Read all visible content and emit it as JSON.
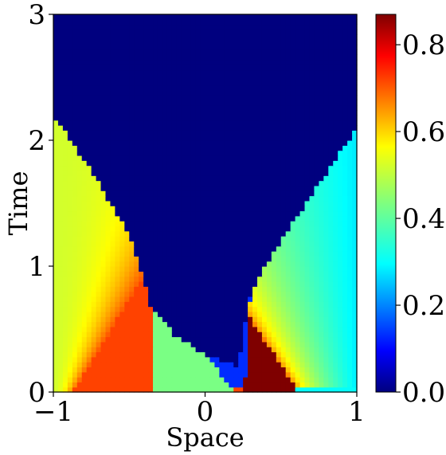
{
  "chart_data": {
    "type": "heatmap",
    "title": "",
    "xlabel": "Space",
    "ylabel": "Time",
    "xlim": [
      -1,
      1
    ],
    "ylim": [
      0,
      3
    ],
    "x_ticks": [
      {
        "value": -1,
        "label": "−1"
      },
      {
        "value": 0,
        "label": "0"
      },
      {
        "value": 1,
        "label": "1"
      }
    ],
    "y_ticks": [
      {
        "value": 0,
        "label": "0"
      },
      {
        "value": 1,
        "label": "1"
      },
      {
        "value": 2,
        "label": "2"
      },
      {
        "value": 3,
        "label": "3"
      }
    ],
    "colormap": "jet",
    "colorbar": {
      "range": [
        0,
        0.87
      ],
      "ticks": [
        {
          "value": 0.0,
          "label": "0.0"
        },
        {
          "value": 0.2,
          "label": "0.2"
        },
        {
          "value": 0.4,
          "label": "0.4"
        },
        {
          "value": 0.6,
          "label": "0.6"
        },
        {
          "value": 0.8,
          "label": "0.8"
        }
      ]
    },
    "background_value": 0.0,
    "regions": [
      {
        "name": "left-rarefaction-fan",
        "x_base": [
          -1,
          -0.5
        ],
        "value_range": [
          0.55,
          0.7
        ]
      },
      {
        "name": "left-plateau",
        "x_base": [
          -0.87,
          -0.36
        ],
        "t_top": 0.55,
        "value": 0.72
      },
      {
        "name": "central-plateau",
        "x_base": [
          -0.36,
          0.19
        ],
        "t_top": 0.6,
        "value": 0.43
      },
      {
        "name": "central-dip",
        "x_base": [
          -0.15,
          0.3
        ],
        "t_top": 0.95,
        "value": 0.13
      },
      {
        "name": "right-peak",
        "x_base": [
          0.26,
          0.62
        ],
        "t_top": 0.55,
        "value": 0.87
      },
      {
        "name": "right-rarefaction-fan",
        "x_base": [
          0.62,
          1
        ],
        "value_range": [
          0.28,
          0.55
        ]
      },
      {
        "name": "right-plateau",
        "x_base": [
          0.62,
          1
        ],
        "t_top": 0.06,
        "value": 0.3
      }
    ],
    "vacuum_front": {
      "left": [
        [
          -1,
          2.2
        ],
        [
          -0.72,
          1.7
        ],
        [
          -0.5,
          1.25
        ],
        [
          -0.36,
          0.7
        ],
        [
          -0.2,
          0.45
        ],
        [
          0,
          0.3
        ],
        [
          0.22,
          0.2
        ]
      ],
      "right": [
        [
          0.22,
          0.2
        ],
        [
          0.3,
          0.8
        ],
        [
          0.5,
          1.2
        ],
        [
          0.75,
          1.65
        ],
        [
          1,
          2.1
        ]
      ]
    }
  }
}
